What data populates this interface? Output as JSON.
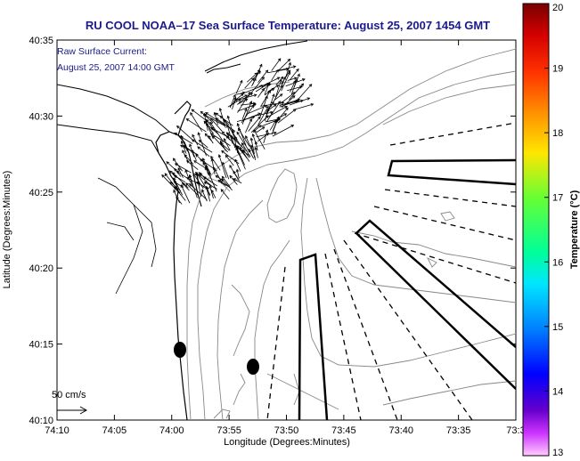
{
  "title": "RU COOL  NOAA–17  Sea Surface Temperature:  August 25, 2007 1454 GMT",
  "current_label_line1": "Raw Surface Current:",
  "current_label_line2": "August 25, 2007 14:00 GMT",
  "scale_label": "50 cm/s",
  "x_axis_label": "Longitude (Degrees:Minutes)",
  "y_axis_label": "Latitude (Degrees:Minutes)",
  "x_ticks": [
    "74:10",
    "74:05",
    "74:00",
    "73:55",
    "73:50",
    "73:45",
    "73:40",
    "73:35",
    "73:3"
  ],
  "y_ticks": [
    "40:35",
    "40:30",
    "40:25",
    "40:20",
    "40:15",
    "40:10"
  ],
  "colorbar": {
    "label": "Temperature (°C)",
    "ticks": [
      "20",
      "19",
      "18",
      "17",
      "16",
      "15",
      "14",
      "13"
    ],
    "colors": [
      "#7a0000",
      "#d40000",
      "#ff4000",
      "#ff9900",
      "#ffe600",
      "#66ff33",
      "#00ff99",
      "#00e6ff",
      "#0080ff",
      "#0000ff",
      "#6600cc",
      "#cc33ff",
      "#ffccff"
    ]
  }
}
